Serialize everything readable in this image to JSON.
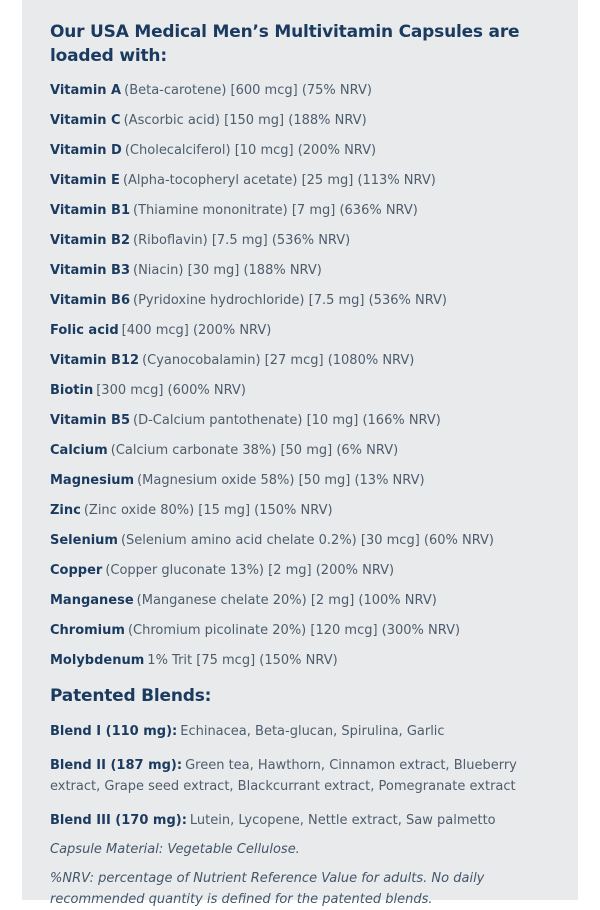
{
  "theme": {
    "page_bg": "#ffffff",
    "panel_bg": "#e8eaec",
    "heading_color": "#1b3a5f",
    "body_color": "#4e5d6d"
  },
  "intro": {
    "title": "Our USA Medical Men’s Multivitamin Capsules are loaded with:"
  },
  "ingredients": [
    {
      "name": "Vitamin A",
      "details": "(Beta-carotene) [600 mcg] (75% NRV)"
    },
    {
      "name": "Vitamin C",
      "details": "(Ascorbic acid) [150 mg] (188% NRV)"
    },
    {
      "name": "Vitamin D",
      "details": "(Cholecalciferol) [10 mcg] (200% NRV)"
    },
    {
      "name": "Vitamin E",
      "details": "(Alpha-tocopheryl acetate) [25 mg] (113% NRV)"
    },
    {
      "name": "Vitamin B1",
      "details": "(Thiamine mononitrate) [7 mg] (636% NRV)"
    },
    {
      "name": "Vitamin B2",
      "details": "(Riboflavin) [7.5 mg] (536% NRV)"
    },
    {
      "name": "Vitamin B3",
      "details": "(Niacin) [30 mg] (188% NRV)"
    },
    {
      "name": "Vitamin B6",
      "details": "(Pyridoxine hydrochloride) [7.5 mg] (536% NRV)"
    },
    {
      "name": "Folic acid",
      "details": "[400 mcg] (200% NRV)"
    },
    {
      "name": "Vitamin B12",
      "details": "(Cyanocobalamin) [27 mcg] (1080% NRV)"
    },
    {
      "name": "Biotin",
      "details": "[300 mcg] (600% NRV)"
    },
    {
      "name": "Vitamin B5",
      "details": "(D-Calcium pantothenate) [10 mg] (166% NRV)"
    },
    {
      "name": "Calcium",
      "details": "(Calcium carbonate 38%) [50 mg] (6% NRV)"
    },
    {
      "name": "Magnesium",
      "details": "(Magnesium oxide 58%) [50 mg] (13% NRV)"
    },
    {
      "name": "Zinc",
      "details": "(Zinc oxide 80%) [15 mg] (150% NRV)"
    },
    {
      "name": "Selenium",
      "details": "(Selenium amino acid chelate 0.2%) [30 mcg] (60% NRV)"
    },
    {
      "name": "Copper",
      "details": "(Copper gluconate 13%) [2 mg] (200% NRV)"
    },
    {
      "name": "Manganese",
      "details": "(Manganese chelate 20%) [2 mg] (100% NRV)"
    },
    {
      "name": "Chromium",
      "details": "(Chromium picolinate 20%) [120 mcg] (300% NRV)"
    },
    {
      "name": "Molybdenum",
      "details": "1% Trit [75 mcg] (150% NRV)"
    }
  ],
  "patented": {
    "heading": "Patented Blends:",
    "blends": [
      {
        "name": "Blend I (110 mg):",
        "details": "Echinacea, Beta-glucan, Spirulina, Garlic"
      },
      {
        "name": "Blend II (187 mg):",
        "details": "Green tea, Hawthorn, Cinnamon extract, Blueberry extract, Grape seed extract, Blackcurrant extract, Pomegranate extract"
      },
      {
        "name": "Blend III (170 mg):",
        "details": "Lutein, Lycopene, Nettle extract, Saw palmetto"
      }
    ]
  },
  "notes": {
    "capsule_material": "Capsule Material: Vegetable Cellulose.",
    "nrv_disclaimer": "%NRV: percentage of Nutrient Reference Value for adults. No daily recommended quantity is defined for the patented blends."
  }
}
